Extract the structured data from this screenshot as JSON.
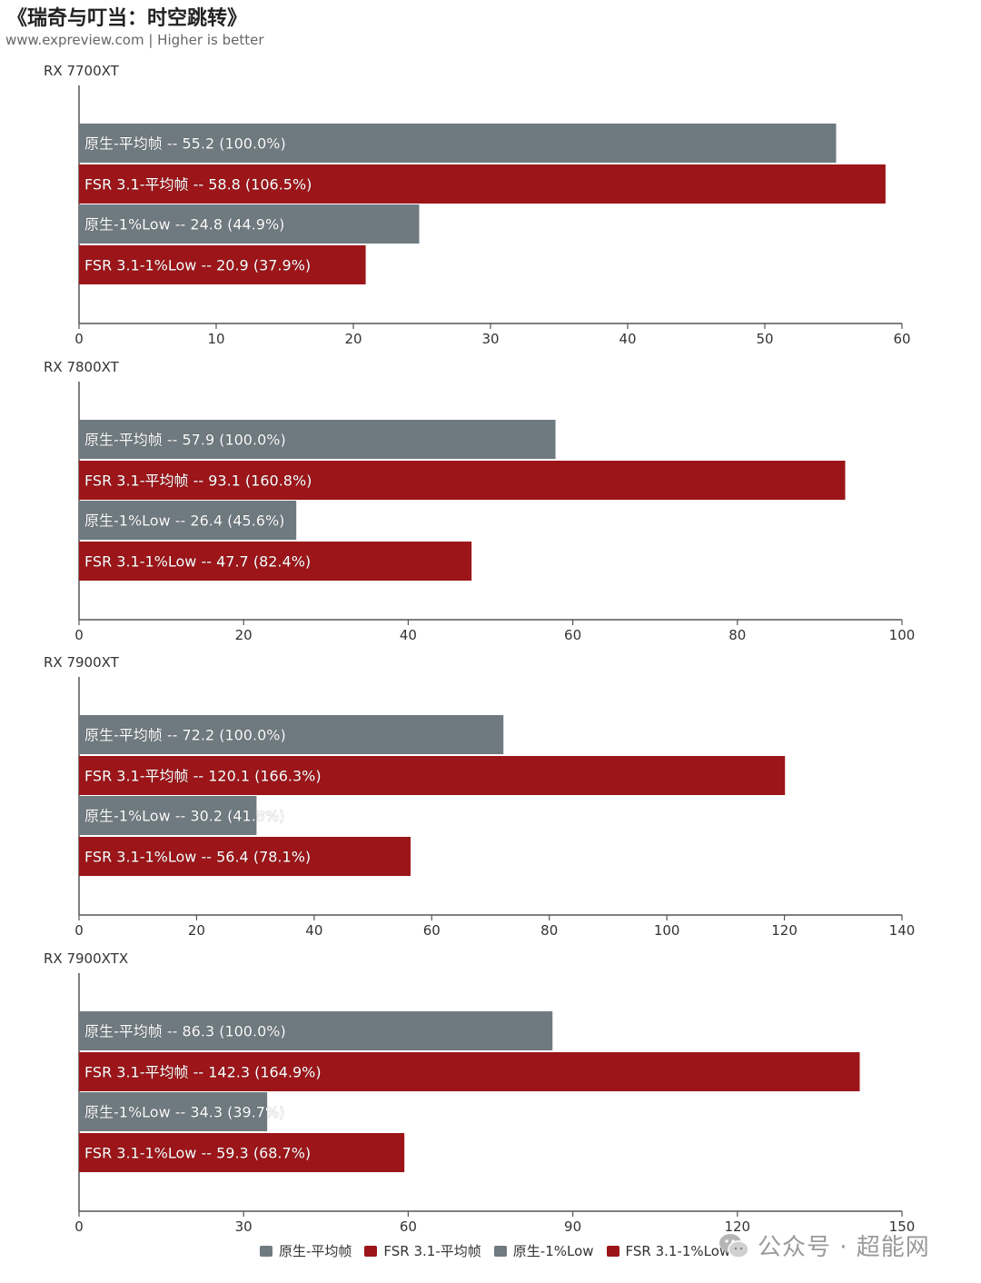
{
  "header": {
    "title": "《瑞奇与叮当：时空跳转》",
    "subtitle": "www.expreview.com | Higher is better"
  },
  "watermark": {
    "text": "公众号 · 超能网",
    "icon": "wechat-icon"
  },
  "colors": {
    "native": "#6f7a80",
    "fsr": "#9c1519",
    "axis": "#555555"
  },
  "chart_data": [
    {
      "type": "bar",
      "orientation": "horizontal",
      "subtitle": "RX 7700XT",
      "xlim": [
        0,
        60
      ],
      "xticks": [
        0,
        10,
        20,
        30,
        40,
        50,
        60
      ],
      "bars": [
        {
          "label": "原生-平均帧  --  55.2 (100.0%)",
          "series": "原生-平均帧",
          "value": 55.2,
          "percent": "100.0%"
        },
        {
          "label": "FSR 3.1-平均帧  --  58.8 (106.5%)",
          "series": "FSR 3.1-平均帧",
          "value": 58.8,
          "percent": "106.5%"
        },
        {
          "label": "原生-1%Low  --  24.8 (44.9%)",
          "series": "原生-1%Low",
          "value": 24.8,
          "percent": "44.9%"
        },
        {
          "label": "FSR 3.1-1%Low  --  20.9 (37.9%)",
          "series": "FSR 3.1-1%Low",
          "value": 20.9,
          "percent": "37.9%"
        }
      ]
    },
    {
      "type": "bar",
      "orientation": "horizontal",
      "subtitle": "RX 7800XT",
      "xlim": [
        0,
        100
      ],
      "xticks": [
        0,
        20,
        40,
        60,
        80,
        100
      ],
      "bars": [
        {
          "label": "原生-平均帧  --  57.9 (100.0%)",
          "series": "原生-平均帧",
          "value": 57.9,
          "percent": "100.0%"
        },
        {
          "label": "FSR 3.1-平均帧  --  93.1 (160.8%)",
          "series": "FSR 3.1-平均帧",
          "value": 93.1,
          "percent": "160.8%"
        },
        {
          "label": "原生-1%Low  --  26.4 (45.6%)",
          "series": "原生-1%Low",
          "value": 26.4,
          "percent": "45.6%"
        },
        {
          "label": "FSR 3.1-1%Low  --  47.7 (82.4%)",
          "series": "FSR 3.1-1%Low",
          "value": 47.7,
          "percent": "82.4%"
        }
      ]
    },
    {
      "type": "bar",
      "orientation": "horizontal",
      "subtitle": "RX 7900XT",
      "xlim": [
        0,
        140
      ],
      "xticks": [
        0,
        20,
        40,
        60,
        80,
        100,
        120,
        140
      ],
      "bars": [
        {
          "label": "原生-平均帧  --  72.2 (100.0%)",
          "series": "原生-平均帧",
          "value": 72.2,
          "percent": "100.0%"
        },
        {
          "label": "FSR 3.1-平均帧  --  120.1 (166.3%)",
          "series": "FSR 3.1-平均帧",
          "value": 120.1,
          "percent": "166.3%"
        },
        {
          "label": "原生-1%Low  --  30.2 (41.8%)",
          "series": "原生-1%Low",
          "value": 30.2,
          "percent": "41.8%"
        },
        {
          "label": "FSR 3.1-1%Low  --  56.4 (78.1%)",
          "series": "FSR 3.1-1%Low",
          "value": 56.4,
          "percent": "78.1%"
        }
      ]
    },
    {
      "type": "bar",
      "orientation": "horizontal",
      "subtitle": "RX 7900XTX",
      "xlim": [
        0,
        150
      ],
      "xticks": [
        0,
        30,
        60,
        90,
        120,
        150
      ],
      "bars": [
        {
          "label": "原生-平均帧  --  86.3 (100.0%)",
          "series": "原生-平均帧",
          "value": 86.3,
          "percent": "100.0%"
        },
        {
          "label": "FSR 3.1-平均帧  --  142.3 (164.9%)",
          "series": "FSR 3.1-平均帧",
          "value": 142.3,
          "percent": "164.9%"
        },
        {
          "label": "原生-1%Low  --  34.3 (39.7%)",
          "series": "原生-1%Low",
          "value": 34.3,
          "percent": "39.7%"
        },
        {
          "label": "FSR 3.1-1%Low  --  59.3 (68.7%)",
          "series": "FSR 3.1-1%Low",
          "value": 59.3,
          "percent": "68.7%"
        }
      ]
    }
  ],
  "legend": {
    "placement": "bottom",
    "items": [
      {
        "label": "原生-平均帧",
        "color": "#6f7a80"
      },
      {
        "label": "FSR 3.1-平均帧",
        "color": "#9c1519"
      },
      {
        "label": "原生-1%Low",
        "color": "#6f7a80"
      },
      {
        "label": "FSR 3.1-1%Low",
        "color": "#9c1519"
      }
    ]
  }
}
